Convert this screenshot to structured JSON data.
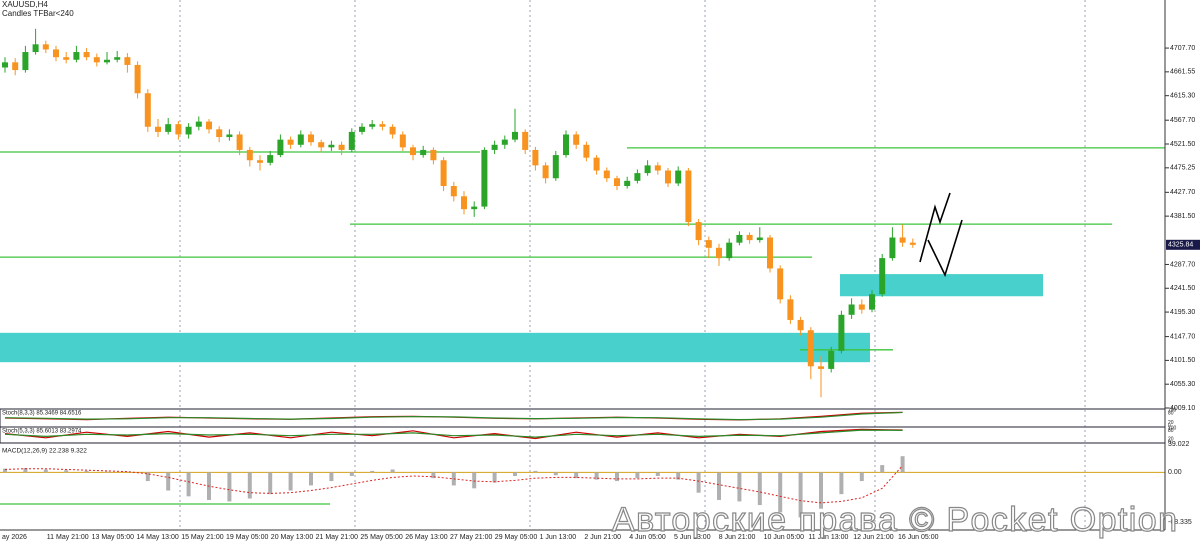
{
  "chart_data": {
    "type": "candlestick",
    "symbol": "XAUUSD,H4",
    "indicator_label": "Candles TFBar<240",
    "bull_color": "#2aa52a",
    "bear_color": "#f7931e",
    "level_color": "#3cc43c",
    "zone_color": "#48d1cc",
    "ylim": [
      4009.1,
      4801
    ],
    "yticks": [
      {
        "value": 4707.7,
        "label": "4707.70"
      },
      4661.55,
      {
        "value": 4615.3,
        "label": "4615.30"
      },
      {
        "value": 4567.7,
        "label": "4567.70"
      },
      {
        "value": 4521.5,
        "label": "4521.50"
      },
      4475.25,
      {
        "value": 4427.7,
        "label": "4427.70"
      },
      {
        "value": 4381.5,
        "label": "4381.50"
      },
      {
        "value": 4287.7,
        "label": "4287.70"
      },
      {
        "value": 4241.5,
        "label": "4241.50"
      },
      {
        "value": 4195.3,
        "label": "4195.30"
      },
      {
        "value": 4147.7,
        "label": "4147.70"
      },
      {
        "value": 4101.5,
        "label": "4101.50"
      },
      {
        "value": 4055.3,
        "label": "4055.30"
      },
      {
        "value": 4009.1,
        "label": "4009.10"
      }
    ],
    "ohlc": [
      [
        4670,
        4690,
        4660,
        4680
      ],
      [
        4680,
        4688,
        4655,
        4665
      ],
      [
        4665,
        4712,
        4660,
        4700
      ],
      [
        4700,
        4745,
        4695,
        4715
      ],
      [
        4715,
        4722,
        4698,
        4705
      ],
      [
        4705,
        4712,
        4682,
        4690
      ],
      [
        4690,
        4700,
        4678,
        4685
      ],
      [
        4685,
        4712,
        4680,
        4700
      ],
      [
        4700,
        4708,
        4684,
        4690
      ],
      [
        4690,
        4697,
        4672,
        4680
      ],
      [
        4680,
        4700,
        4676,
        4685
      ],
      [
        4685,
        4702,
        4680,
        4690
      ],
      [
        4690,
        4698,
        4660,
        4675
      ],
      [
        4675,
        4682,
        4610,
        4620
      ],
      [
        4620,
        4628,
        4545,
        4555
      ],
      [
        4555,
        4570,
        4535,
        4545
      ],
      [
        4545,
        4572,
        4540,
        4560
      ],
      [
        4560,
        4566,
        4530,
        4540
      ],
      [
        4540,
        4562,
        4532,
        4555
      ],
      [
        4555,
        4575,
        4548,
        4565
      ],
      [
        4565,
        4570,
        4542,
        4550
      ],
      [
        4550,
        4556,
        4525,
        4535
      ],
      [
        4535,
        4550,
        4528,
        4540
      ],
      [
        4540,
        4546,
        4500,
        4510
      ],
      [
        4510,
        4516,
        4478,
        4490
      ],
      [
        4490,
        4500,
        4470,
        4485
      ],
      [
        4485,
        4508,
        4480,
        4500
      ],
      [
        4500,
        4540,
        4496,
        4530
      ],
      [
        4530,
        4536,
        4512,
        4520
      ],
      [
        4520,
        4548,
        4515,
        4540
      ],
      [
        4540,
        4546,
        4518,
        4525
      ],
      [
        4525,
        4530,
        4505,
        4515
      ],
      [
        4515,
        4528,
        4508,
        4520
      ],
      [
        4520,
        4526,
        4500,
        4510
      ],
      [
        4510,
        4552,
        4505,
        4545
      ],
      [
        4545,
        4562,
        4540,
        4555
      ],
      [
        4555,
        4568,
        4550,
        4560
      ],
      [
        4560,
        4566,
        4548,
        4555
      ],
      [
        4555,
        4560,
        4532,
        4540
      ],
      [
        4540,
        4546,
        4508,
        4515
      ],
      [
        4515,
        4520,
        4490,
        4500
      ],
      [
        4500,
        4518,
        4495,
        4510
      ],
      [
        4510,
        4515,
        4482,
        4490
      ],
      [
        4490,
        4496,
        4430,
        4440
      ],
      [
        4440,
        4448,
        4410,
        4420
      ],
      [
        4420,
        4430,
        4385,
        4395
      ],
      [
        4395,
        4410,
        4380,
        4400
      ],
      [
        4400,
        4515,
        4395,
        4510
      ],
      [
        4510,
        4528,
        4502,
        4520
      ],
      [
        4520,
        4538,
        4512,
        4530
      ],
      [
        4530,
        4590,
        4525,
        4545
      ],
      [
        4545,
        4550,
        4502,
        4510
      ],
      [
        4510,
        4516,
        4470,
        4480
      ],
      [
        4480,
        4486,
        4445,
        4455
      ],
      [
        4455,
        4508,
        4450,
        4500
      ],
      [
        4500,
        4548,
        4495,
        4540
      ],
      [
        4540,
        4546,
        4512,
        4520
      ],
      [
        4520,
        4526,
        4488,
        4495
      ],
      [
        4495,
        4500,
        4462,
        4470
      ],
      [
        4470,
        4476,
        4448,
        4455
      ],
      [
        4455,
        4460,
        4432,
        4440
      ],
      [
        4440,
        4458,
        4435,
        4450
      ],
      [
        4450,
        4472,
        4445,
        4465
      ],
      [
        4465,
        4490,
        4460,
        4480
      ],
      [
        4480,
        4486,
        4462,
        4470
      ],
      [
        4470,
        4475,
        4438,
        4445
      ],
      [
        4445,
        4478,
        4440,
        4470
      ],
      [
        4470,
        4475,
        4362,
        4370
      ],
      [
        4370,
        4376,
        4325,
        4335
      ],
      [
        4335,
        4342,
        4300,
        4320
      ],
      [
        4320,
        4328,
        4285,
        4300
      ],
      [
        4300,
        4338,
        4295,
        4330
      ],
      [
        4330,
        4352,
        4325,
        4345
      ],
      [
        4345,
        4350,
        4328,
        4335
      ],
      [
        4335,
        4360,
        4330,
        4340
      ],
      [
        4340,
        4345,
        4272,
        4280
      ],
      [
        4280,
        4286,
        4212,
        4220
      ],
      [
        4220,
        4228,
        4172,
        4180
      ],
      [
        4180,
        4186,
        4150,
        4160
      ],
      [
        4160,
        4166,
        4065,
        4090
      ],
      [
        4090,
        4110,
        4030,
        4085
      ],
      [
        4085,
        4128,
        4078,
        4120
      ],
      [
        4120,
        4198,
        4115,
        4190
      ],
      [
        4190,
        4222,
        4182,
        4210
      ],
      [
        4210,
        4220,
        4192,
        4200
      ],
      [
        4200,
        4238,
        4195,
        4230
      ],
      [
        4230,
        4308,
        4225,
        4300
      ],
      [
        4300,
        4360,
        4295,
        4340
      ],
      [
        4340,
        4365,
        4322,
        4330
      ],
      [
        4330,
        4338,
        4320,
        4325.84
      ]
    ],
    "levels": [
      4506,
      4514,
      4366,
      4302,
      4122
    ],
    "zones": [
      [
        4098,
        4155
      ],
      [
        4226,
        4269
      ]
    ],
    "time_labels": [
      "ay 2026",
      "11 May 21:00",
      "13 May 05:00",
      "14 May 13:00",
      "15 May 21:00",
      "19 May 05:00",
      "20 May 13:00",
      "21 May 21:00",
      "25 May 05:00",
      "26 May 13:00",
      "27 May 21:00",
      "29 May 05:00",
      "1 Jun 13:00",
      "2 Jun 21:00",
      "4 Jun 05:00",
      "5 Jun 13:00",
      "8 Jun 21:00",
      "10 Jun 05:00",
      "11 Jun 13:00",
      "12 Jun 21:00",
      "16 Jun 05:00"
    ],
    "stoch_panels": [
      {
        "label": "Stoch(8,3,3) 85.3469 84.6516",
        "ylim": [
          0,
          100
        ],
        "yticks": [
          0,
          20,
          80,
          100
        ],
        "main": [
          50,
          45,
          40,
          48,
          55,
          50,
          45,
          42,
          50,
          58,
          60,
          55,
          48,
          45,
          50,
          55,
          50,
          42,
          38,
          45,
          60,
          80,
          85.3469
        ],
        "signal": [
          52,
          48,
          43,
          45,
          52,
          52,
          47,
          43,
          47,
          55,
          59,
          57,
          50,
          46,
          48,
          53,
          52,
          45,
          40,
          43,
          55,
          75,
          84.6516
        ]
      },
      {
        "label": "Stoch(5,3,3) 85.6013 83.2974",
        "ylim": [
          0,
          100
        ],
        "yticks": [
          0,
          20,
          80,
          100
        ],
        "main": [
          60,
          30,
          70,
          40,
          75,
          35,
          65,
          30,
          70,
          45,
          80,
          30,
          60,
          25,
          70,
          35,
          65,
          30,
          55,
          40,
          75,
          90,
          85.6013
        ],
        "signal": [
          55,
          40,
          55,
          50,
          60,
          50,
          55,
          45,
          55,
          55,
          65,
          45,
          50,
          35,
          55,
          45,
          55,
          40,
          48,
          45,
          65,
          85,
          83.2974
        ]
      }
    ],
    "macd": {
      "label": "MACD(12,26,9) 22.238 9.322",
      "ylim": [
        -68.335,
        39.022
      ],
      "yticks": [
        39.022,
        {
          "value": 0,
          "label": "0.00"
        },
        -68.335
      ],
      "histogram": [
        5,
        6,
        4,
        3,
        2,
        1,
        0,
        -12,
        -25,
        -33,
        -38,
        -40,
        -36,
        -30,
        -25,
        -18,
        -12,
        -5,
        2,
        4,
        0,
        -8,
        -18,
        -22,
        -14,
        -5,
        2,
        -4,
        -8,
        -10,
        -12,
        -8,
        -5,
        -10,
        -28,
        -38,
        -40,
        -45,
        -55,
        -62,
        -50,
        -30,
        -12,
        10,
        22.238
      ],
      "signal": [
        4,
        5,
        5,
        4,
        3,
        2,
        1,
        -2,
        -7,
        -13,
        -19,
        -24,
        -28,
        -29,
        -28,
        -25,
        -21,
        -16,
        -11,
        -7,
        -5,
        -6,
        -9,
        -12,
        -13,
        -11,
        -8,
        -7,
        -7,
        -8,
        -9,
        -9,
        -8,
        -8,
        -12,
        -17,
        -22,
        -27,
        -33,
        -39,
        -42,
        -40,
        -35,
        -22,
        9.322
      ]
    },
    "watermark": "Авторские права © Pocket Option"
  }
}
